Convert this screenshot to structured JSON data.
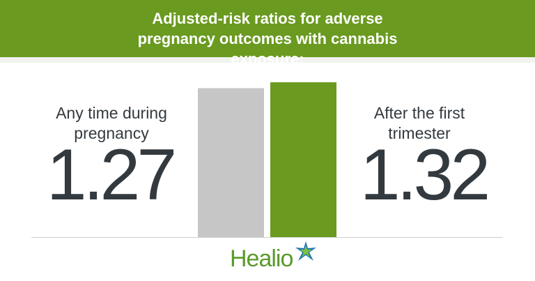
{
  "chart_data": {
    "type": "bar",
    "title": "Adjusted-risk ratios for adverse pregnancy outcomes with cannabis exposure:",
    "categories": [
      "Any time during pregnancy",
      "After the first trimester"
    ],
    "values": [
      1.27,
      1.32
    ],
    "colors": [
      "#c6c6c6",
      "#6a9a1f"
    ],
    "logo": "Healio"
  }
}
